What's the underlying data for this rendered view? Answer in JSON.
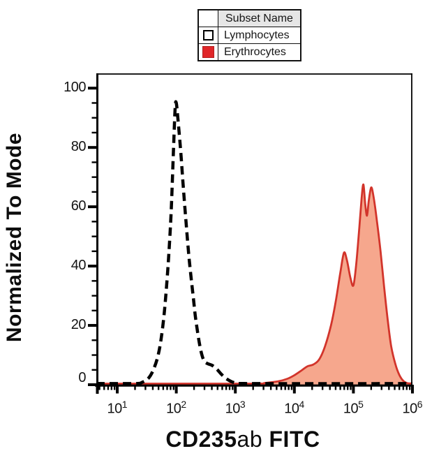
{
  "figure": {
    "legend": {
      "header": "Subset Name",
      "position": "top-center",
      "rows": [
        {
          "label": "Lymphocytes",
          "swatch": "white-outline",
          "swatch_color": "#ffffff"
        },
        {
          "label": "Erythrocytes",
          "swatch": "red-filled",
          "swatch_color": "#e02629"
        }
      ]
    }
  },
  "chart_data": {
    "type": "area",
    "subtype": "flow-cytometry-histogram-overlay",
    "title": "",
    "xlabel": "CD235ab FITC",
    "xlabel_parts": [
      {
        "text": "CD235",
        "bold": true
      },
      {
        "text": "ab",
        "bold": false
      },
      {
        "text": " FITC",
        "bold": true
      }
    ],
    "ylabel": "Normalized To Mode",
    "grid": false,
    "legend_position": "top-center",
    "x_axis": {
      "scale": "log10",
      "tick_base": "10",
      "tick_exponents": [
        1,
        2,
        3,
        4,
        5,
        6
      ],
      "minor_ticks": "log positions 2-9 per decade",
      "range_exponents": [
        0.645,
        6.0
      ]
    },
    "y_axis": {
      "ticks": [
        0,
        20,
        40,
        60,
        80,
        100
      ],
      "minor_step": 5,
      "range": [
        0,
        105
      ]
    },
    "colors": {
      "lymphocytes_stroke": "#000000",
      "erythrocytes_stroke": "#d2342b",
      "erythrocytes_fill": "#f6a78d",
      "legend_header_bg": "#e6e6e6",
      "axis": "#000000"
    },
    "series": [
      {
        "name": "Lymphocytes",
        "line": "dashed",
        "color": "#000000",
        "fill": "none",
        "peak": {
          "log10_x": 1.98,
          "y": 95
        },
        "points_log10x_y": [
          [
            0.645,
            0.4
          ],
          [
            1.3,
            0.4
          ],
          [
            1.42,
            0.8
          ],
          [
            1.52,
            2
          ],
          [
            1.6,
            4.5
          ],
          [
            1.68,
            9
          ],
          [
            1.74,
            15
          ],
          [
            1.8,
            25
          ],
          [
            1.86,
            40
          ],
          [
            1.91,
            57
          ],
          [
            1.95,
            78
          ],
          [
            1.98,
            93
          ],
          [
            2.0,
            95
          ],
          [
            2.03,
            89
          ],
          [
            2.07,
            80
          ],
          [
            2.11,
            69
          ],
          [
            2.16,
            56
          ],
          [
            2.22,
            42
          ],
          [
            2.29,
            29
          ],
          [
            2.33,
            22
          ],
          [
            2.4,
            13
          ],
          [
            2.46,
            8.5
          ],
          [
            2.52,
            7.2
          ],
          [
            2.6,
            6.6
          ],
          [
            2.68,
            5.4
          ],
          [
            2.76,
            3.6
          ],
          [
            2.85,
            2.0
          ],
          [
            2.94,
            1.0
          ],
          [
            3.03,
            0.5
          ],
          [
            3.15,
            0.4
          ],
          [
            4.0,
            0.35
          ],
          [
            5.0,
            0.35
          ],
          [
            6.0,
            0.4
          ]
        ]
      },
      {
        "name": "Erythrocytes",
        "line": "solid",
        "color": "#d2342b",
        "fill": "#f6a78d",
        "peak": {
          "log10_x": 5.17,
          "y": 67.5
        },
        "points_log10x_y": [
          [
            0.645,
            0.35
          ],
          [
            3.2,
            0.35
          ],
          [
            3.5,
            0.6
          ],
          [
            3.72,
            1.1
          ],
          [
            3.88,
            2.0
          ],
          [
            4.0,
            3.2
          ],
          [
            4.12,
            4.8
          ],
          [
            4.22,
            6.2
          ],
          [
            4.32,
            6.8
          ],
          [
            4.42,
            8.5
          ],
          [
            4.52,
            13
          ],
          [
            4.62,
            20
          ],
          [
            4.7,
            28
          ],
          [
            4.78,
            38
          ],
          [
            4.84,
            44.5
          ],
          [
            4.89,
            42
          ],
          [
            4.95,
            36
          ],
          [
            5.0,
            33.5
          ],
          [
            5.05,
            41
          ],
          [
            5.1,
            53
          ],
          [
            5.14,
            63
          ],
          [
            5.17,
            67.5
          ],
          [
            5.2,
            61
          ],
          [
            5.23,
            57
          ],
          [
            5.26,
            62
          ],
          [
            5.3,
            66.5
          ],
          [
            5.34,
            63.5
          ],
          [
            5.4,
            55
          ],
          [
            5.46,
            45
          ],
          [
            5.52,
            33
          ],
          [
            5.58,
            22
          ],
          [
            5.64,
            13
          ],
          [
            5.71,
            7
          ],
          [
            5.78,
            3.2
          ],
          [
            5.85,
            1.2
          ],
          [
            5.92,
            0.5
          ],
          [
            6.0,
            0.4
          ]
        ]
      }
    ]
  }
}
